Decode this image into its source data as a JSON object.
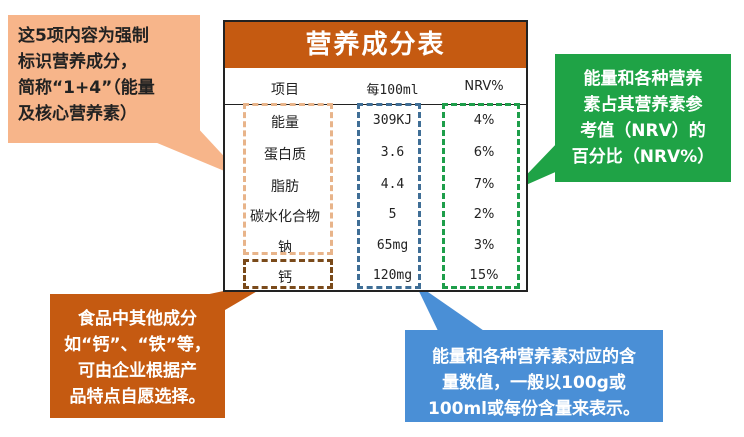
{
  "table": {
    "title": "营养成分表",
    "headers": {
      "item": "项目",
      "amount": "每100ml",
      "nrv": "NRV%"
    },
    "rows": [
      {
        "item": "能量",
        "amount": "309KJ",
        "nrv": "4%"
      },
      {
        "item": "蛋白质",
        "amount": "3.6",
        "nrv": "6%"
      },
      {
        "item": "脂肪",
        "amount": "4.4",
        "nrv": "7%"
      },
      {
        "item": "碳水化合物",
        "amount": "5",
        "nrv": "2%"
      },
      {
        "item": "钠",
        "amount": "65mg",
        "nrv": "3%"
      },
      {
        "item": "钙",
        "amount": "120mg",
        "nrv": "15%"
      }
    ]
  },
  "callouts": {
    "top_left": [
      "这5项内容为强制",
      "标识营养成分，",
      "简称“1+4”（能量",
      "及核心营养素）"
    ],
    "top_right": [
      "能量和各种营养",
      "素占其营养素参",
      "考值（NRV）的",
      "百分比（NRV%）"
    ],
    "bottom_left": [
      "食品中其他成分",
      "如“钙”、“铁”等，",
      "可由企业根据产",
      "品特点自愿选择。"
    ],
    "bottom_right": [
      "能量和各种营养素对应的含",
      "量数值，一般以100g或",
      "100ml或每份含量来表示。"
    ]
  },
  "colors": {
    "title_bg": "#c55a11",
    "callout_tl": "#f7b58a",
    "callout_tr": "#1fa346",
    "callout_bl": "#c55a11",
    "callout_br": "#4a8fd6",
    "dash_items": "#e8b48a",
    "dash_amount": "#3f6e96",
    "dash_nrv": "#1e9e4a",
    "dash_calcium": "#7a4a1a"
  }
}
